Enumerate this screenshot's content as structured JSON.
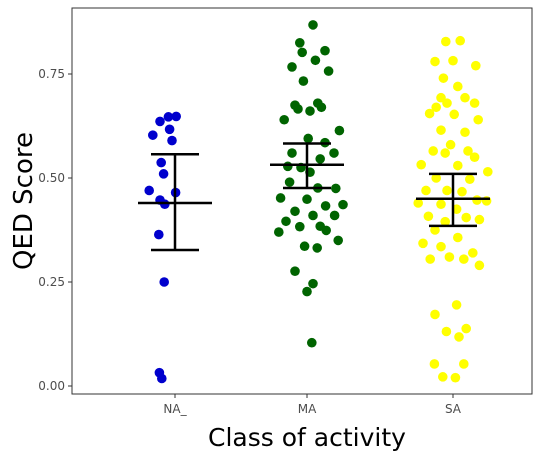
{
  "chart_data": {
    "type": "scatter",
    "title": "",
    "xlabel": "Class of activity",
    "ylabel": "QED Score",
    "ylim": [
      -0.03,
      0.88
    ],
    "yticks": [
      "0.00",
      "0.25",
      "0.50",
      "0.75"
    ],
    "ytick_values": [
      0.0,
      0.25,
      0.5,
      0.75
    ],
    "grid": false,
    "legend": "none",
    "categories": [
      "NA_",
      "MA",
      "SA"
    ],
    "series": [
      {
        "category": "NA_",
        "color": "#0000CD",
        "mean": 0.44,
        "ci_low": 0.327,
        "ci_high": 0.557,
        "points": [
          {
            "x": -0.11,
            "y": 0.647
          },
          {
            "x": -0.25,
            "y": 0.636
          },
          {
            "x": 0.02,
            "y": 0.648
          },
          {
            "x": -0.37,
            "y": 0.603
          },
          {
            "x": -0.09,
            "y": 0.617
          },
          {
            "x": -0.05,
            "y": 0.59
          },
          {
            "x": -0.23,
            "y": 0.537
          },
          {
            "x": -0.19,
            "y": 0.51
          },
          {
            "x": -0.43,
            "y": 0.47
          },
          {
            "x": 0.01,
            "y": 0.465
          },
          {
            "x": -0.25,
            "y": 0.447
          },
          {
            "x": -0.17,
            "y": 0.437
          },
          {
            "x": -0.27,
            "y": 0.364
          },
          {
            "x": -0.18,
            "y": 0.25
          },
          {
            "x": -0.26,
            "y": 0.032
          },
          {
            "x": -0.22,
            "y": 0.018
          }
        ]
      },
      {
        "category": "MA",
        "color": "#006400",
        "mean": 0.532,
        "ci_low": 0.476,
        "ci_high": 0.583,
        "points": [
          {
            "x": 0.1,
            "y": 0.868
          },
          {
            "x": -0.12,
            "y": 0.825
          },
          {
            "x": -0.08,
            "y": 0.802
          },
          {
            "x": 0.3,
            "y": 0.806
          },
          {
            "x": 0.14,
            "y": 0.783
          },
          {
            "x": -0.25,
            "y": 0.767
          },
          {
            "x": 0.36,
            "y": 0.757
          },
          {
            "x": -0.06,
            "y": 0.733
          },
          {
            "x": -0.2,
            "y": 0.675
          },
          {
            "x": 0.18,
            "y": 0.68
          },
          {
            "x": 0.24,
            "y": 0.67
          },
          {
            "x": -0.15,
            "y": 0.666
          },
          {
            "x": -0.38,
            "y": 0.64
          },
          {
            "x": 0.05,
            "y": 0.661
          },
          {
            "x": 0.54,
            "y": 0.614
          },
          {
            "x": 0.02,
            "y": 0.595
          },
          {
            "x": 0.3,
            "y": 0.585
          },
          {
            "x": -0.25,
            "y": 0.56
          },
          {
            "x": 0.45,
            "y": 0.56
          },
          {
            "x": -0.32,
            "y": 0.528
          },
          {
            "x": -0.1,
            "y": 0.525
          },
          {
            "x": 0.22,
            "y": 0.546
          },
          {
            "x": 0.05,
            "y": 0.514
          },
          {
            "x": -0.29,
            "y": 0.49
          },
          {
            "x": 0.48,
            "y": 0.475
          },
          {
            "x": 0.18,
            "y": 0.476
          },
          {
            "x": -0.44,
            "y": 0.452
          },
          {
            "x": 0.0,
            "y": 0.449
          },
          {
            "x": 0.31,
            "y": 0.433
          },
          {
            "x": 0.6,
            "y": 0.436
          },
          {
            "x": -0.2,
            "y": 0.42
          },
          {
            "x": 0.1,
            "y": 0.41
          },
          {
            "x": 0.46,
            "y": 0.41
          },
          {
            "x": -0.35,
            "y": 0.396
          },
          {
            "x": 0.32,
            "y": 0.374
          },
          {
            "x": -0.47,
            "y": 0.37
          },
          {
            "x": -0.12,
            "y": 0.383
          },
          {
            "x": 0.22,
            "y": 0.384
          },
          {
            "x": 0.52,
            "y": 0.35
          },
          {
            "x": -0.04,
            "y": 0.336
          },
          {
            "x": 0.17,
            "y": 0.332
          },
          {
            "x": -0.2,
            "y": 0.276
          },
          {
            "x": 0.1,
            "y": 0.246
          },
          {
            "x": 0.0,
            "y": 0.227
          },
          {
            "x": 0.08,
            "y": 0.104
          }
        ]
      },
      {
        "category": "SA",
        "color": "#FFFF00",
        "mean": 0.45,
        "ci_low": 0.385,
        "ci_high": 0.51,
        "points": [
          {
            "x": 0.12,
            "y": 0.83
          },
          {
            "x": -0.12,
            "y": 0.828
          },
          {
            "x": -0.3,
            "y": 0.78
          },
          {
            "x": 0.0,
            "y": 0.782
          },
          {
            "x": 0.38,
            "y": 0.77
          },
          {
            "x": -0.16,
            "y": 0.74
          },
          {
            "x": 0.08,
            "y": 0.72
          },
          {
            "x": -0.2,
            "y": 0.693
          },
          {
            "x": 0.2,
            "y": 0.693
          },
          {
            "x": -0.28,
            "y": 0.67
          },
          {
            "x": -0.1,
            "y": 0.68
          },
          {
            "x": 0.36,
            "y": 0.68
          },
          {
            "x": 0.02,
            "y": 0.653
          },
          {
            "x": -0.39,
            "y": 0.655
          },
          {
            "x": 0.42,
            "y": 0.64
          },
          {
            "x": -0.2,
            "y": 0.615
          },
          {
            "x": 0.2,
            "y": 0.61
          },
          {
            "x": -0.04,
            "y": 0.58
          },
          {
            "x": -0.33,
            "y": 0.565
          },
          {
            "x": -0.13,
            "y": 0.56
          },
          {
            "x": 0.25,
            "y": 0.565
          },
          {
            "x": 0.36,
            "y": 0.55
          },
          {
            "x": -0.53,
            "y": 0.532
          },
          {
            "x": 0.08,
            "y": 0.53
          },
          {
            "x": 0.58,
            "y": 0.515
          },
          {
            "x": -0.28,
            "y": 0.5
          },
          {
            "x": 0.28,
            "y": 0.497
          },
          {
            "x": -0.45,
            "y": 0.47
          },
          {
            "x": -0.1,
            "y": 0.47
          },
          {
            "x": 0.15,
            "y": 0.467
          },
          {
            "x": 0.4,
            "y": 0.447
          },
          {
            "x": 0.56,
            "y": 0.445
          },
          {
            "x": -0.58,
            "y": 0.44
          },
          {
            "x": -0.2,
            "y": 0.437
          },
          {
            "x": 0.06,
            "y": 0.425
          },
          {
            "x": -0.41,
            "y": 0.408
          },
          {
            "x": 0.22,
            "y": 0.405
          },
          {
            "x": 0.44,
            "y": 0.4
          },
          {
            "x": -0.13,
            "y": 0.395
          },
          {
            "x": -0.3,
            "y": 0.375
          },
          {
            "x": 0.08,
            "y": 0.357
          },
          {
            "x": -0.5,
            "y": 0.343
          },
          {
            "x": -0.2,
            "y": 0.335
          },
          {
            "x": 0.33,
            "y": 0.32
          },
          {
            "x": -0.06,
            "y": 0.31
          },
          {
            "x": 0.18,
            "y": 0.305
          },
          {
            "x": -0.38,
            "y": 0.305
          },
          {
            "x": 0.44,
            "y": 0.29
          },
          {
            "x": 0.06,
            "y": 0.195
          },
          {
            "x": -0.3,
            "y": 0.172
          },
          {
            "x": 0.22,
            "y": 0.138
          },
          {
            "x": -0.11,
            "y": 0.131
          },
          {
            "x": 0.1,
            "y": 0.118
          },
          {
            "x": -0.31,
            "y": 0.053
          },
          {
            "x": 0.18,
            "y": 0.053
          },
          {
            "x": -0.17,
            "y": 0.022
          },
          {
            "x": 0.04,
            "y": 0.02
          }
        ]
      }
    ]
  }
}
